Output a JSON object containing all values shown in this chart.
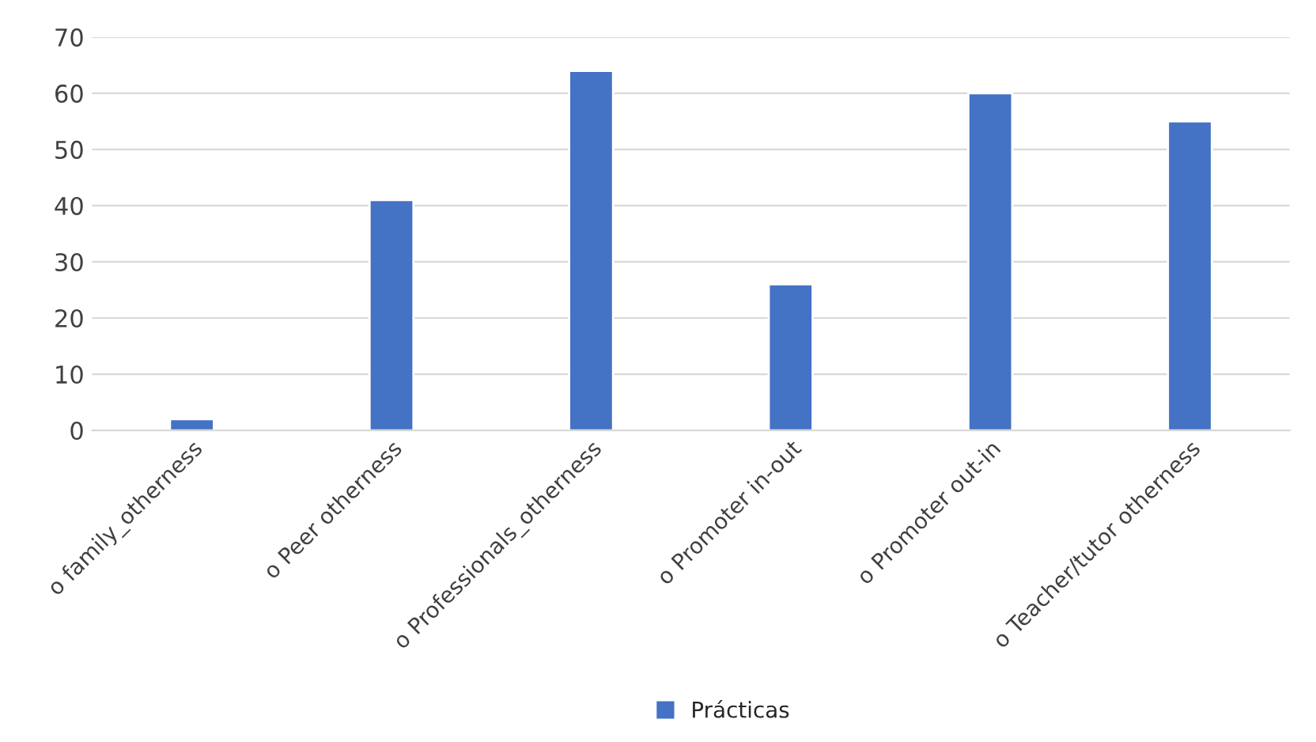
{
  "chart_data": {
    "type": "bar",
    "categories": [
      "o family_otherness",
      "o Peer otherness",
      "o Professionals_otherness",
      "o Promoter in-out",
      "o Promoter out-in",
      "o Teacher/tutor otherness"
    ],
    "series": [
      {
        "name": "Prácticas",
        "color": "#4472c4",
        "values": [
          2,
          41,
          64,
          26,
          60,
          55
        ]
      }
    ],
    "ylim": [
      0,
      70
    ],
    "yticks": [
      0,
      10,
      20,
      30,
      40,
      50,
      60,
      70
    ],
    "grid": "y",
    "legend": "bottom"
  }
}
